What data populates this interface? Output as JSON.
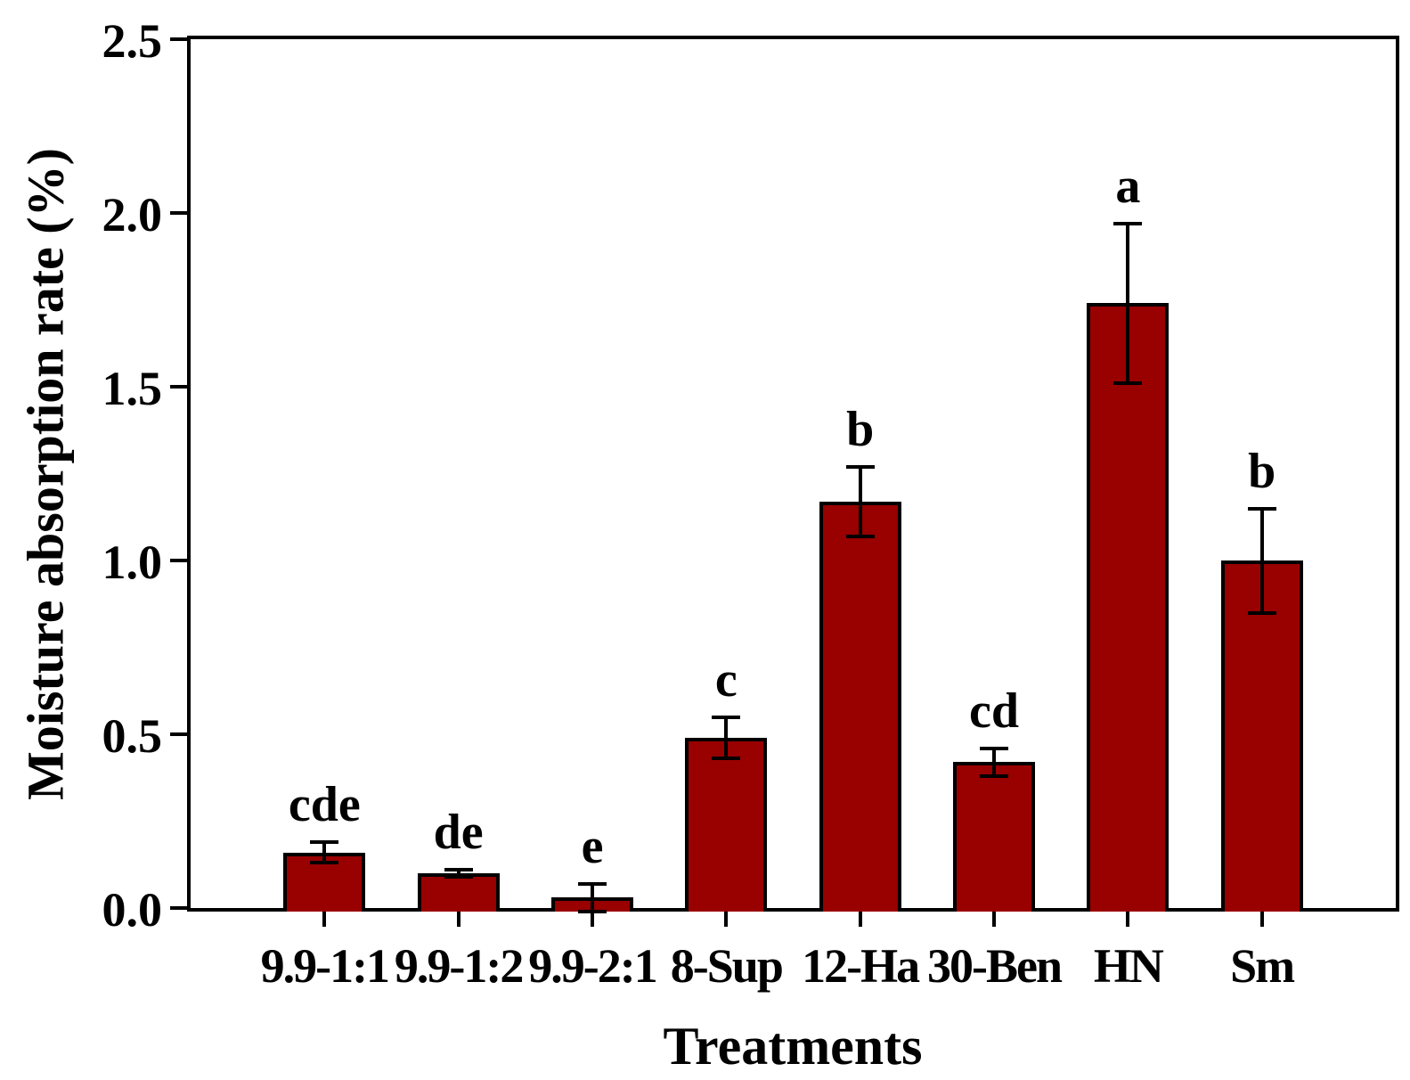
{
  "chart_data": {
    "type": "bar",
    "title": "",
    "xlabel": "Treatments",
    "ylabel": "Moisture absorption rate (%)",
    "ylim": [
      0,
      2.5
    ],
    "ytick_step": 0.5,
    "yticks": [
      "0.0",
      "0.5",
      "1.0",
      "1.5",
      "2.0",
      "2.5"
    ],
    "categories": [
      "9.9-1:1",
      "9.9-1:2",
      "9.9-2:1",
      "8-Sup",
      "12-Ha",
      "30-Ben",
      "HN",
      "Sm"
    ],
    "values": [
      0.16,
      0.1,
      0.03,
      0.49,
      1.17,
      0.42,
      1.74,
      1.0
    ],
    "errors": [
      0.03,
      0.01,
      0.04,
      0.06,
      0.1,
      0.04,
      0.23,
      0.15
    ],
    "sig_letters": [
      "cde",
      "de",
      "e",
      "c",
      "b",
      "cd",
      "a",
      "b"
    ],
    "bar_color": "#990000",
    "bar_edge_color": "#000000",
    "axis_color": "#000000",
    "background_color": "#ffffff",
    "grid": false,
    "legend": null,
    "error_bar_style": "plus-minus-with-caps",
    "frame": "full-box",
    "tick_direction": "out"
  }
}
